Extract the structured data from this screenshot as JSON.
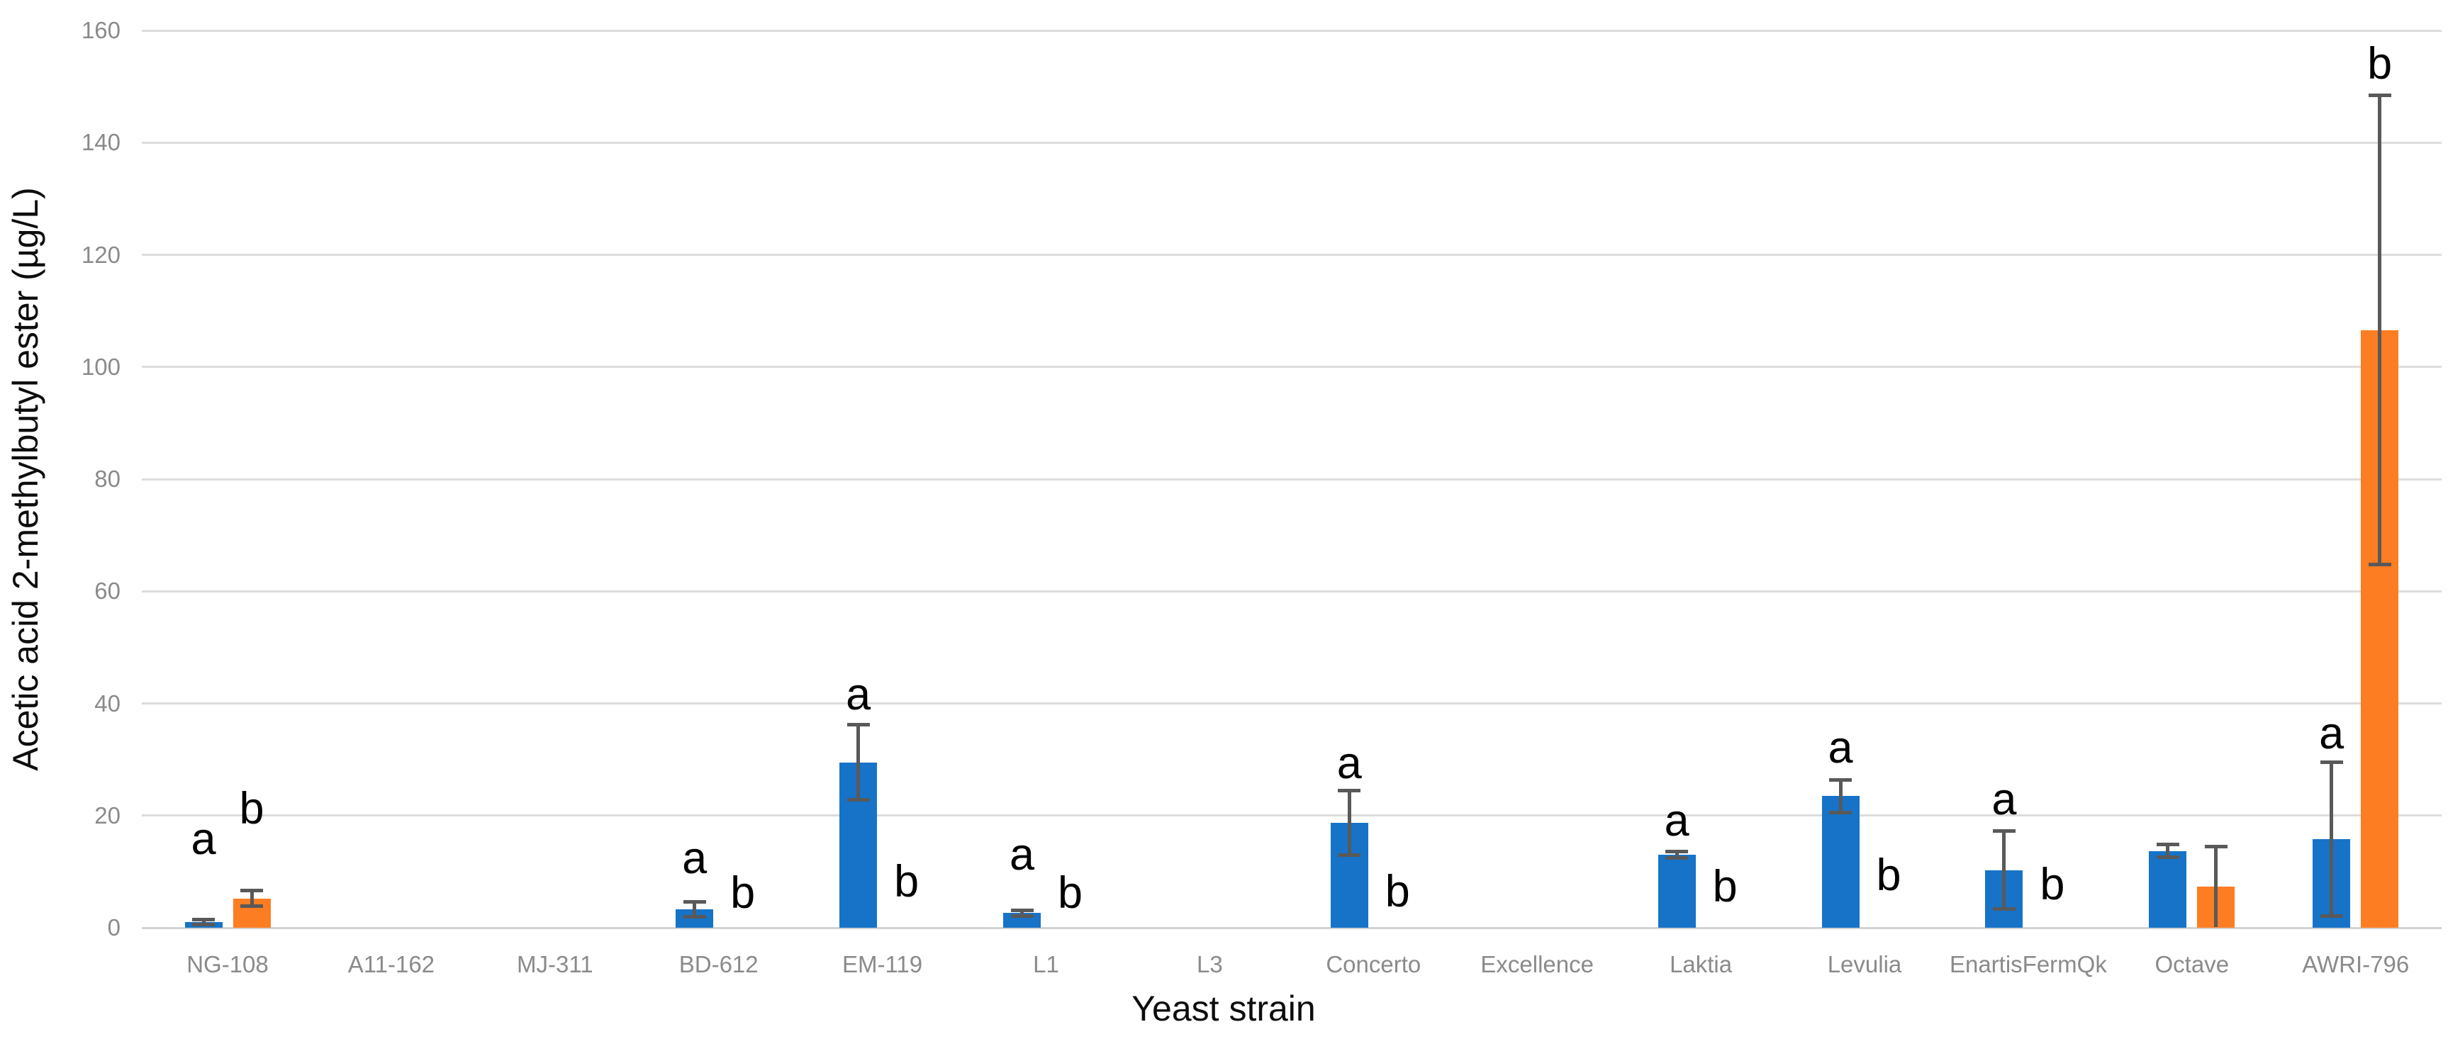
{
  "chart_data": {
    "type": "bar",
    "title": "",
    "xlabel": "Yeast strain",
    "ylabel": "Acetic acid 2-methylbutyl ester (µg/L)",
    "ylim": [
      0,
      160
    ],
    "ytick_step": 20,
    "yticks": [
      0,
      20,
      40,
      60,
      80,
      100,
      120,
      140,
      160
    ],
    "ytick_labels": [
      "0",
      "20",
      "40",
      "60",
      "80",
      "100",
      "120",
      "140",
      "160"
    ],
    "grid": true,
    "legend_position": "none",
    "categories": [
      "NG-108",
      "A11-162",
      "MJ-311",
      "BD-612",
      "EM-119",
      "L1",
      "L3",
      "Concerto",
      "Excellence",
      "Laktia",
      "Levulia",
      "EnartisFermQk",
      "Octave",
      "AWRI-796"
    ],
    "series": [
      {
        "name": "blue",
        "color": "#1673C8",
        "values": [
          1.0,
          0,
          0,
          3.3,
          29.5,
          2.6,
          0,
          18.7,
          0,
          13.0,
          23.5,
          10.3,
          13.7,
          15.8
        ],
        "errors": [
          0.4,
          0,
          0,
          1.3,
          6.7,
          0.5,
          0,
          5.7,
          0,
          0.6,
          2.9,
          7.0,
          1.1,
          13.7
        ]
      },
      {
        "name": "orange",
        "color": "#FC7D22",
        "values": [
          5.2,
          0,
          0,
          0,
          0,
          0,
          0,
          0,
          0,
          0,
          0,
          0,
          7.3,
          106.6
        ],
        "errors": [
          1.4,
          0,
          0,
          0,
          0,
          0,
          0,
          0,
          0,
          0,
          0,
          0,
          7.2,
          41.8
        ]
      }
    ],
    "annotations": [
      {
        "category": "NG-108",
        "series": "blue",
        "text": "a",
        "y": 11.8
      },
      {
        "category": "NG-108",
        "series": "orange",
        "text": "b",
        "y": 17.2
      },
      {
        "category": "BD-612",
        "series": "blue",
        "text": "a",
        "y": 8.3
      },
      {
        "category": "BD-612",
        "series": "orange",
        "text": "b",
        "y": 2.2
      },
      {
        "category": "EM-119",
        "series": "blue",
        "text": "a",
        "y": 37.5
      },
      {
        "category": "EM-119",
        "series": "orange",
        "text": "b",
        "y": 4.2
      },
      {
        "category": "L1",
        "series": "blue",
        "text": "a",
        "y": 9.0
      },
      {
        "category": "L1",
        "series": "orange",
        "text": "b",
        "y": 2.2
      },
      {
        "category": "Concerto",
        "series": "blue",
        "text": "a",
        "y": 25.3
      },
      {
        "category": "Concerto",
        "series": "orange",
        "text": "b",
        "y": 2.4
      },
      {
        "category": "Laktia",
        "series": "blue",
        "text": "a",
        "y": 15.0
      },
      {
        "category": "Laktia",
        "series": "orange",
        "text": "b",
        "y": 3.3
      },
      {
        "category": "Levulia",
        "series": "blue",
        "text": "a",
        "y": 28.0
      },
      {
        "category": "Levulia",
        "series": "orange",
        "text": "b",
        "y": 5.3
      },
      {
        "category": "EnartisFermQk",
        "series": "blue",
        "text": "a",
        "y": 18.8
      },
      {
        "category": "EnartisFermQk",
        "series": "orange",
        "text": "b",
        "y": 3.7
      },
      {
        "category": "AWRI-796",
        "series": "blue",
        "text": "a",
        "y": 30.6
      },
      {
        "category": "AWRI-796",
        "series": "orange",
        "text": "b",
        "y": 150.0
      }
    ]
  },
  "colors": {
    "bar_blue": "#1673C8",
    "bar_orange": "#FC7D22",
    "gridline": "#DCDCDC",
    "axis_line": "#D2D2D2",
    "tick_label": "#8A8A8A",
    "error_bar": "#595959",
    "annotation": "#000000",
    "axis_title": "#0d0d0d"
  }
}
